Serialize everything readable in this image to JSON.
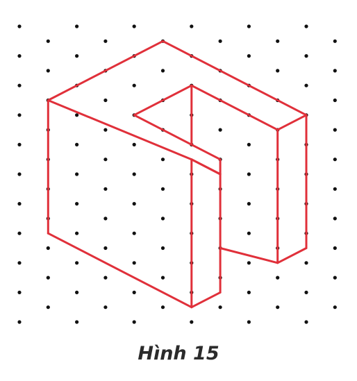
{
  "figure": {
    "caption": "Hình 15",
    "line_color": "#e0303a",
    "dot_color": "#111111"
  }
}
